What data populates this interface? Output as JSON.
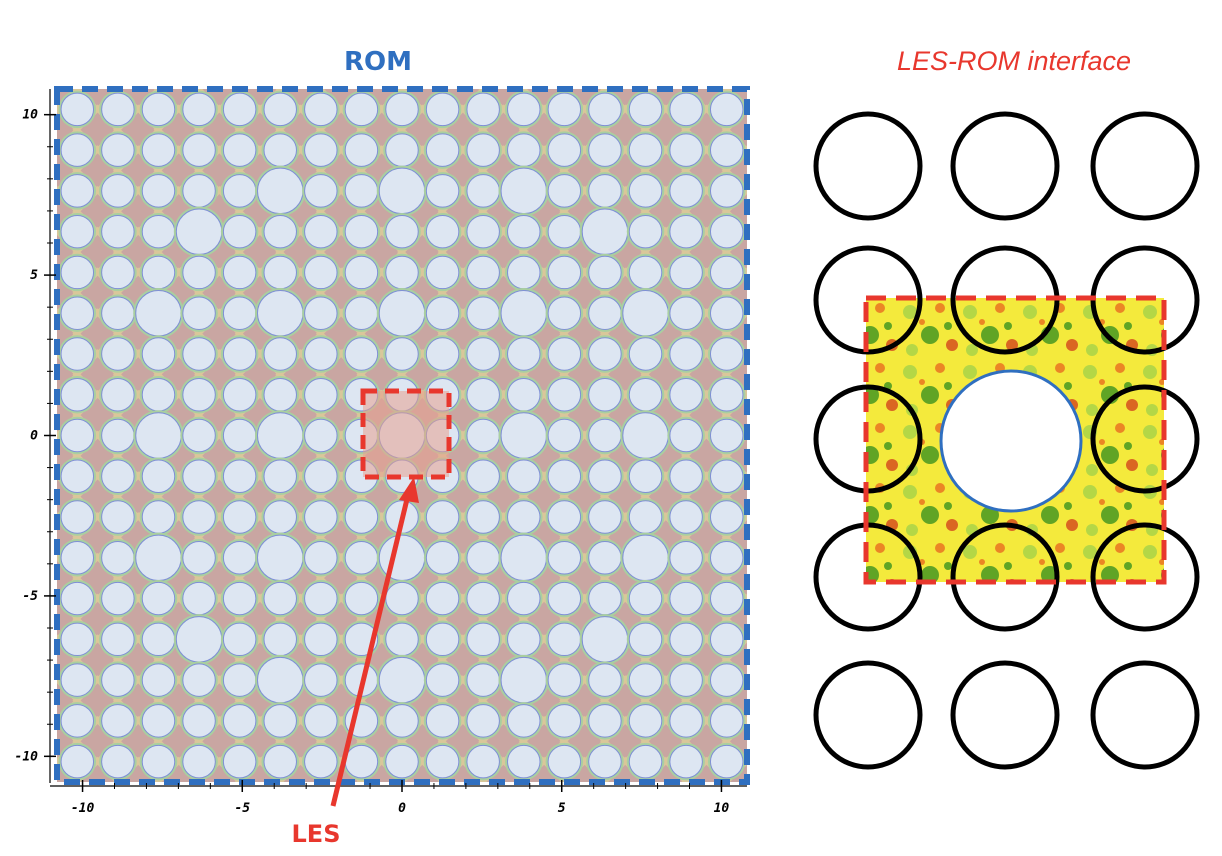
{
  "rom_panel": {
    "title": "ROM",
    "title_color": "#2f6fc0",
    "border_color": "#2f6fc0",
    "x_ticks": [
      "-10",
      "-5",
      "0",
      "5",
      "10"
    ],
    "y_ticks": [
      "10",
      "5",
      "0",
      "-5",
      "-10"
    ],
    "axis_range": [
      -10.8,
      10.8
    ],
    "rod_lattice": "17x17",
    "rod_color": "#dde6f2",
    "field_colors": [
      "#c9a6a2",
      "#d9c79a",
      "#a9cfa0",
      "#7f8fd6"
    ]
  },
  "les_marker": {
    "label": "LES",
    "color": "#e8372d"
  },
  "interface_panel": {
    "title": "LES-ROM interface",
    "title_color": "#e8372d",
    "rod_grid": "3x5",
    "box_color": "#e8372d",
    "field_colors": [
      "#f4ea3c",
      "#2f8c1e",
      "#e8651e",
      "#d23a1a",
      "#9fd14a"
    ]
  }
}
